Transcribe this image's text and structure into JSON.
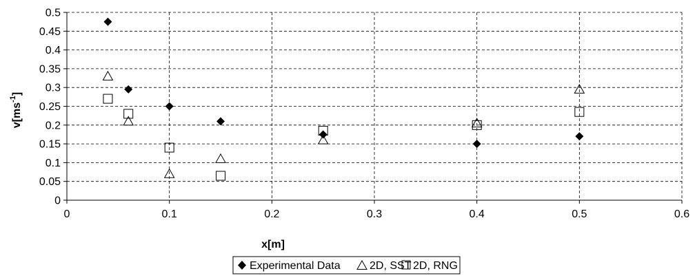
{
  "chart_data": {
    "type": "scatter",
    "title": "",
    "xlabel": "x[m]",
    "ylabel": "v[ms",
    "ylabel_sup": "-1",
    "ylabel_suffix": "]",
    "xlim": [
      0,
      0.6
    ],
    "ylim": [
      0,
      0.5
    ],
    "x_ticks": [
      0,
      0.1,
      0.2,
      0.3,
      0.4,
      0.5,
      0.6
    ],
    "x_tick_labels": [
      "0",
      "0.1",
      "0.2",
      "0.3",
      "0.4",
      "0.5",
      "0.6"
    ],
    "y_ticks": [
      0,
      0.05,
      0.1,
      0.15,
      0.2,
      0.25,
      0.3,
      0.35,
      0.4,
      0.45,
      0.5
    ],
    "y_tick_labels": [
      "0",
      "0.05",
      "0.1",
      "0.15",
      "0.2",
      "0.25",
      "0.3",
      "0.35",
      "0.4",
      "0.45",
      "0.5"
    ],
    "grid": true,
    "legend_position": "bottom-center",
    "series": [
      {
        "name": "Experimental Data",
        "marker": "filled-diamond",
        "color": "#000000",
        "points": [
          {
            "x": 0.04,
            "y": 0.475
          },
          {
            "x": 0.06,
            "y": 0.295
          },
          {
            "x": 0.1,
            "y": 0.25
          },
          {
            "x": 0.15,
            "y": 0.21
          },
          {
            "x": 0.25,
            "y": 0.175
          },
          {
            "x": 0.4,
            "y": 0.15
          },
          {
            "x": 0.5,
            "y": 0.17
          }
        ]
      },
      {
        "name": "2D, SST",
        "marker": "open-triangle",
        "color": "#000000",
        "points": [
          {
            "x": 0.04,
            "y": 0.33
          },
          {
            "x": 0.06,
            "y": 0.21
          },
          {
            "x": 0.1,
            "y": 0.07
          },
          {
            "x": 0.15,
            "y": 0.11
          },
          {
            "x": 0.25,
            "y": 0.16
          },
          {
            "x": 0.4,
            "y": 0.205
          },
          {
            "x": 0.5,
            "y": 0.295
          }
        ]
      },
      {
        "name": "2D, RNG",
        "marker": "open-square",
        "color": "#000000",
        "points": [
          {
            "x": 0.04,
            "y": 0.27
          },
          {
            "x": 0.06,
            "y": 0.23
          },
          {
            "x": 0.1,
            "y": 0.14
          },
          {
            "x": 0.15,
            "y": 0.065
          },
          {
            "x": 0.25,
            "y": 0.185
          },
          {
            "x": 0.4,
            "y": 0.2
          },
          {
            "x": 0.5,
            "y": 0.235
          }
        ]
      }
    ]
  }
}
